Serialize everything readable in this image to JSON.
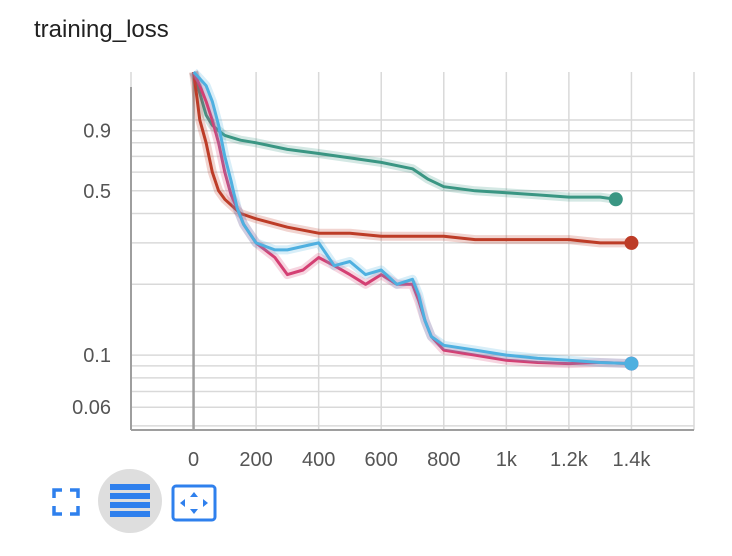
{
  "chart_data": {
    "type": "line",
    "title": "training_loss",
    "yscale": "log",
    "xlabel": "",
    "ylabel": "",
    "xlim": [
      -200,
      1600
    ],
    "ylim": [
      0.048,
      1.6
    ],
    "x_ticks": [
      0,
      200,
      400,
      600,
      800,
      1000,
      1200,
      1400
    ],
    "x_tick_labels": [
      "0",
      "200",
      "400",
      "600",
      "800",
      "1k",
      "1.2k",
      "1.4k"
    ],
    "y_ticks": [
      0.06,
      0.1,
      0.5,
      0.9
    ],
    "y_tick_labels": [
      "0.06",
      "0.1",
      "0.5",
      "0.9"
    ],
    "grid": true,
    "series": [
      {
        "color": "#3a9683",
        "x": [
          0,
          20,
          40,
          60,
          80,
          100,
          150,
          200,
          300,
          400,
          500,
          600,
          700,
          750,
          800,
          900,
          1000,
          1100,
          1200,
          1300,
          1350
        ],
        "y": [
          1.6,
          1.3,
          1.05,
          0.95,
          0.9,
          0.86,
          0.82,
          0.8,
          0.75,
          0.72,
          0.69,
          0.66,
          0.62,
          0.56,
          0.52,
          0.5,
          0.49,
          0.48,
          0.47,
          0.47,
          0.46
        ]
      },
      {
        "color": "#bd3c27",
        "x": [
          0,
          20,
          40,
          60,
          80,
          100,
          150,
          200,
          300,
          400,
          500,
          600,
          700,
          800,
          900,
          1000,
          1100,
          1200,
          1300,
          1400
        ],
        "y": [
          1.6,
          1.0,
          0.8,
          0.6,
          0.5,
          0.46,
          0.4,
          0.38,
          0.35,
          0.33,
          0.33,
          0.32,
          0.32,
          0.32,
          0.31,
          0.31,
          0.31,
          0.31,
          0.3,
          0.3
        ]
      },
      {
        "color": "#d43f73",
        "x": [
          0,
          20,
          40,
          60,
          80,
          100,
          120,
          140,
          160,
          200,
          260,
          300,
          350,
          400,
          450,
          500,
          550,
          600,
          650,
          700,
          720,
          740,
          760,
          800,
          900,
          1000,
          1100,
          1200,
          1300,
          1400
        ],
        "y": [
          1.6,
          1.4,
          1.2,
          1.0,
          0.8,
          0.6,
          0.48,
          0.42,
          0.36,
          0.3,
          0.26,
          0.22,
          0.23,
          0.26,
          0.24,
          0.22,
          0.2,
          0.22,
          0.2,
          0.2,
          0.17,
          0.14,
          0.12,
          0.105,
          0.1,
          0.095,
          0.093,
          0.092,
          0.093,
          0.092
        ]
      },
      {
        "color": "#4fb0e0",
        "x": [
          0,
          20,
          40,
          60,
          80,
          100,
          120,
          140,
          160,
          200,
          260,
          300,
          350,
          400,
          450,
          500,
          550,
          600,
          650,
          700,
          720,
          740,
          760,
          800,
          900,
          1000,
          1100,
          1200,
          1300,
          1400
        ],
        "y": [
          1.6,
          1.5,
          1.4,
          1.2,
          0.95,
          0.7,
          0.55,
          0.42,
          0.36,
          0.3,
          0.28,
          0.28,
          0.29,
          0.3,
          0.24,
          0.25,
          0.22,
          0.23,
          0.2,
          0.21,
          0.18,
          0.14,
          0.12,
          0.11,
          0.105,
          0.1,
          0.097,
          0.095,
          0.093,
          0.092
        ]
      }
    ]
  },
  "toolbar": {
    "fullscreen_icon": "fullscreen-icon",
    "lines_icon": "log-scale-lines-icon",
    "fit_icon": "fit-domain-icon"
  }
}
